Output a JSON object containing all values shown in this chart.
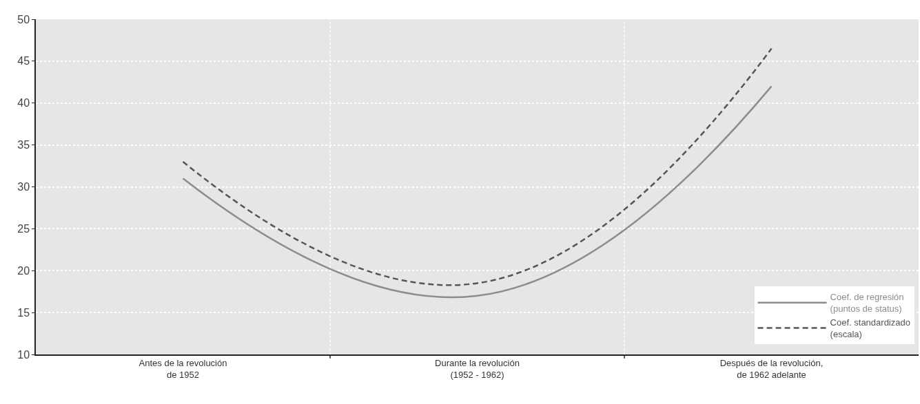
{
  "chart_data": {
    "type": "line",
    "categories": [
      "Antes de la revolución\nde 1952",
      "Durante la revolución\n(1952 - 1962)",
      "Después de la revolución,\nde 1962 adelante"
    ],
    "series": [
      {
        "name": "Coef. de regresión\n(puntos de status)",
        "color": "#8c8c8c",
        "line_style": "solid",
        "values": [
          31,
          17,
          42
        ]
      },
      {
        "name": "Coef. standardizado\n(escala)",
        "color": "#555555",
        "line_style": "dashed",
        "values": [
          33,
          18.5,
          46.5
        ]
      }
    ],
    "ylim": [
      10,
      50
    ],
    "yticks": [
      10,
      15,
      20,
      25,
      30,
      35,
      40,
      45,
      50
    ],
    "grid": true,
    "legend": "bottom right",
    "marker": "none"
  }
}
